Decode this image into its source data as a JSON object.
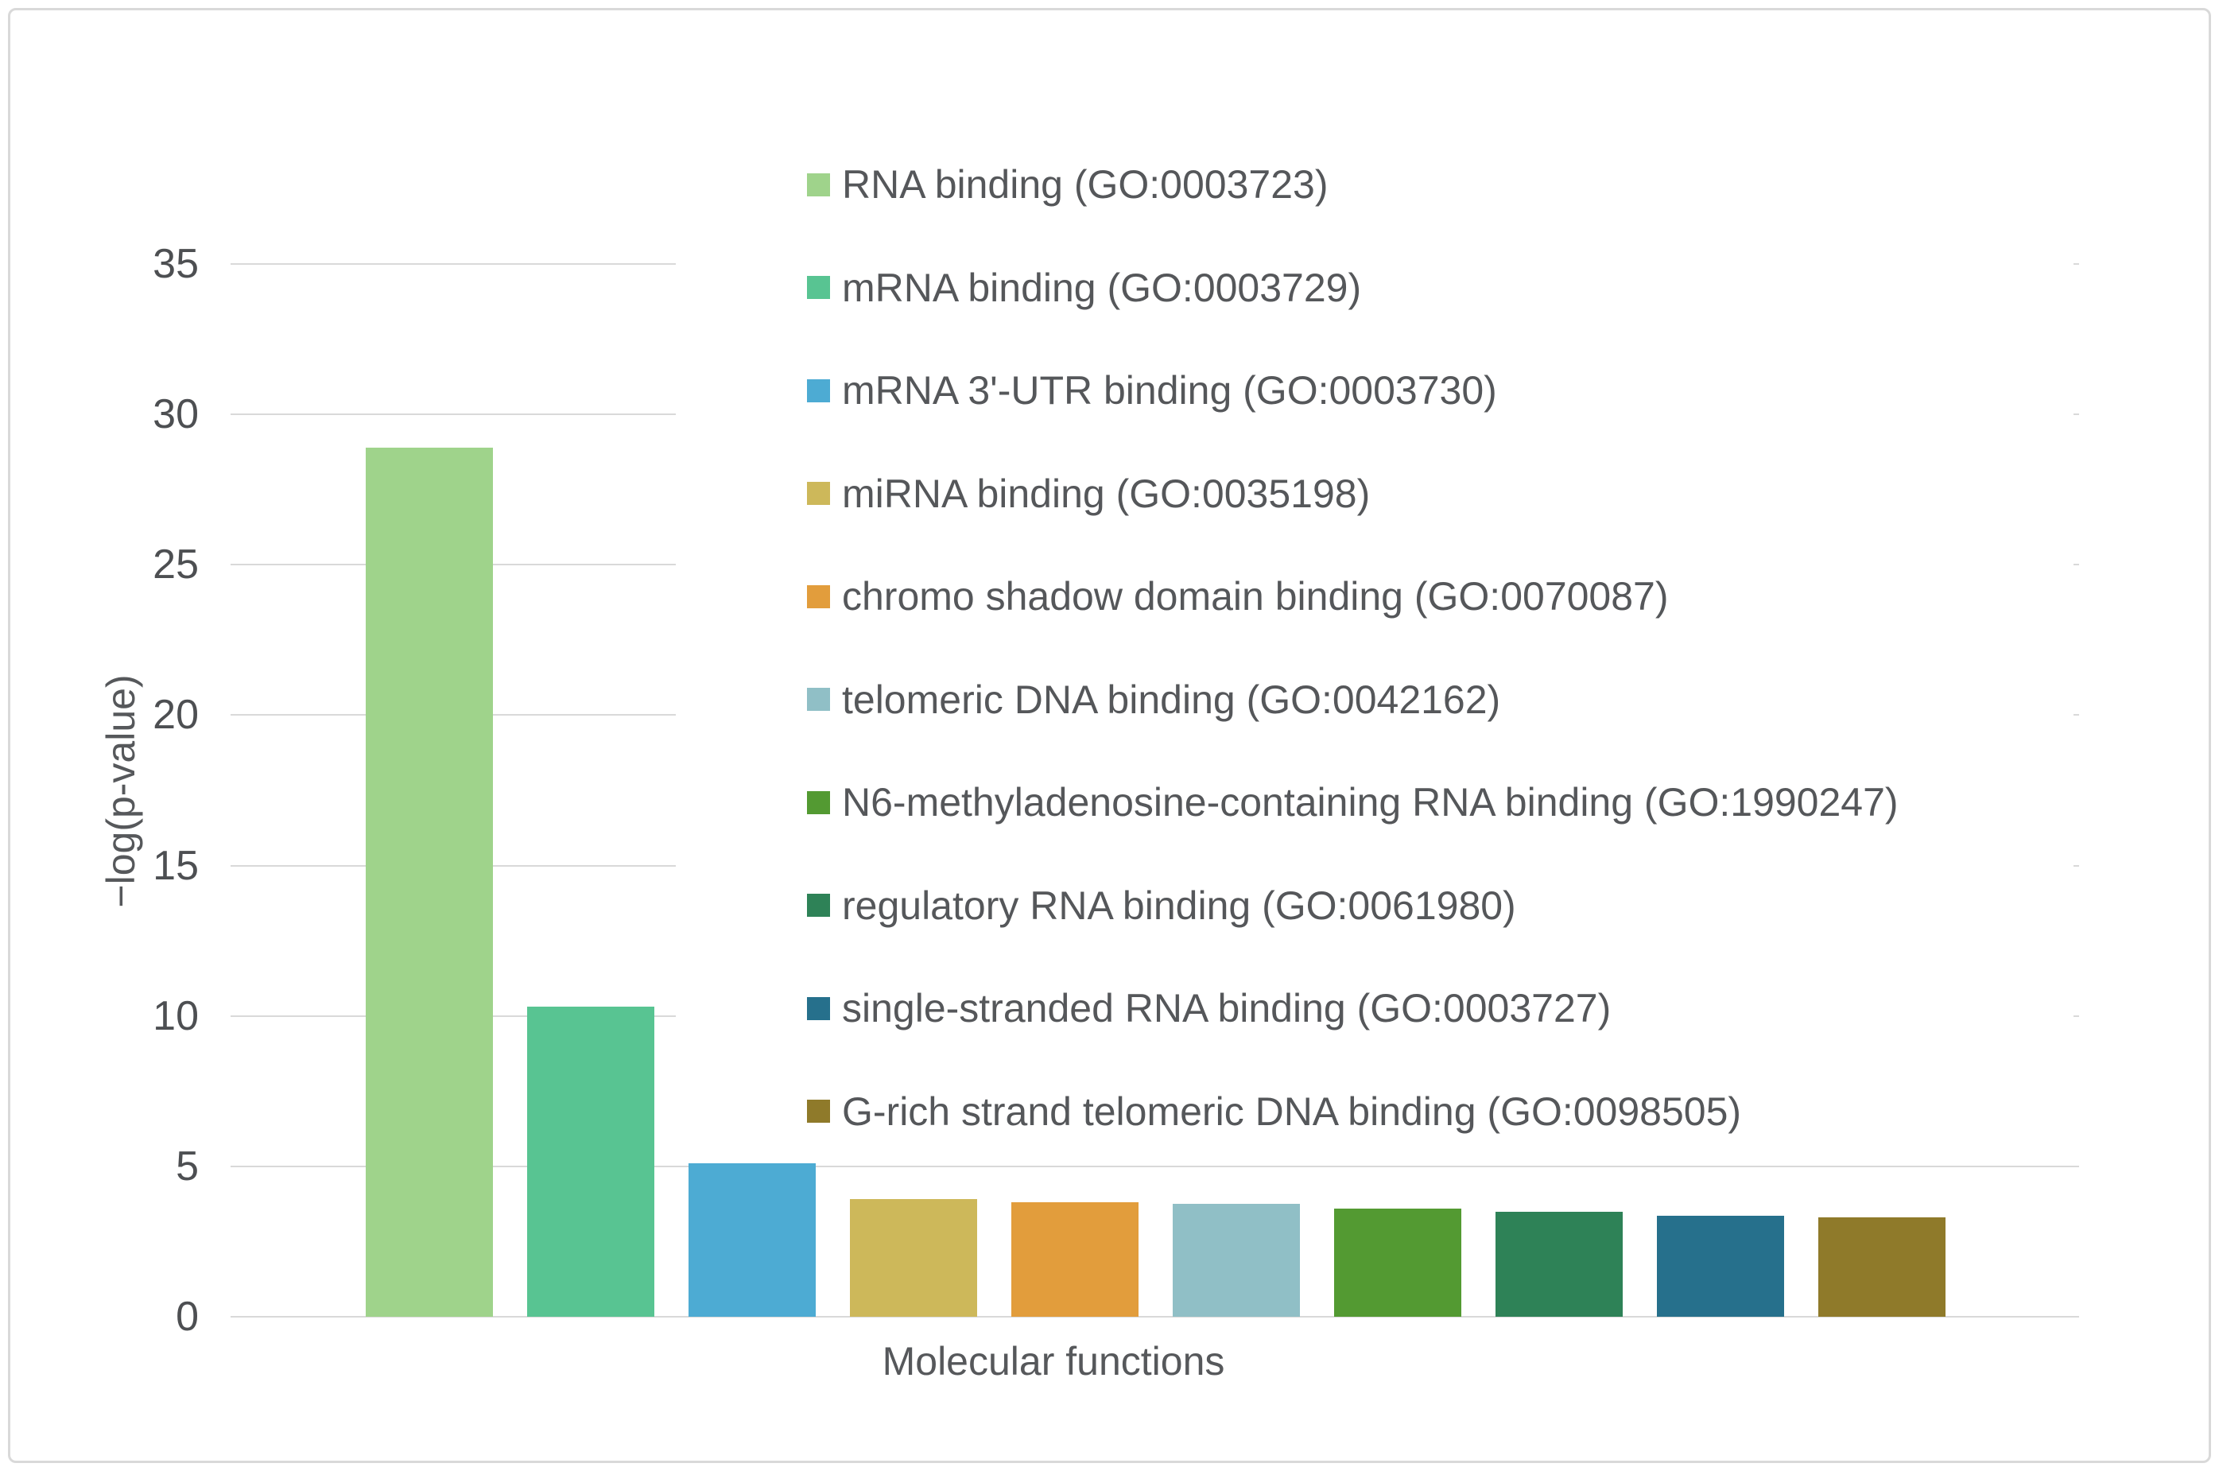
{
  "chart_data": {
    "type": "bar",
    "title": "",
    "xlabel": "Molecular functions",
    "ylabel": "−log(p-value)",
    "ylim": [
      0,
      35
    ],
    "yticks": [
      0,
      5,
      10,
      15,
      20,
      25,
      30,
      35
    ],
    "grid": true,
    "legend_position": "right",
    "categories": [
      "RNA binding (GO:0003723)",
      "mRNA binding (GO:0003729)",
      "mRNA 3'-UTR binding (GO:0003730)",
      "miRNA binding (GO:0035198)",
      "chromo shadow domain binding (GO:0070087)",
      "telomeric DNA binding (GO:0042162)",
      "N6-methyladenosine-containing RNA binding (GO:1990247)",
      "regulatory RNA binding (GO:0061980)",
      "single-stranded RNA binding (GO:0003727)",
      "G-rich strand telomeric DNA binding (GO:0098505)"
    ],
    "values": [
      28.9,
      10.3,
      5.1,
      3.9,
      3.8,
      3.75,
      3.6,
      3.5,
      3.35,
      3.3
    ],
    "colors": [
      "#9fd38b",
      "#58c492",
      "#4dabd3",
      "#cdb85a",
      "#e29d3c",
      "#90bfc6",
      "#539a32",
      "#2e8257",
      "#26708c",
      "#8f7a2a"
    ],
    "gridline_color": "#d9d9d9",
    "text_color": "#55575a"
  }
}
